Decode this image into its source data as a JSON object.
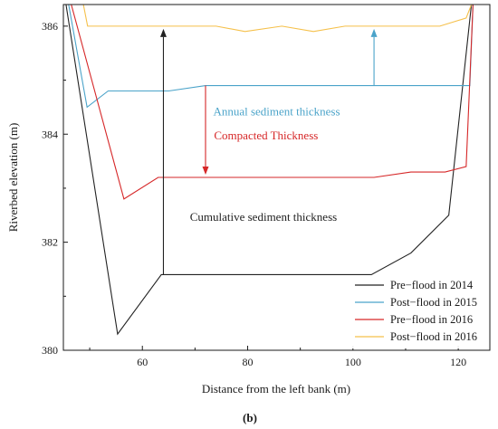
{
  "chart_data": {
    "type": "line",
    "panel_label": "(b)",
    "xlabel": "Distance from the left bank (m)",
    "ylabel": "Riverbed elevation (m)",
    "xlim": [
      45,
      126
    ],
    "ylim": [
      380,
      386.4
    ],
    "xticks": [
      60,
      80,
      100,
      120
    ],
    "yticks": [
      380,
      382,
      384,
      386
    ],
    "grid": false,
    "legend_position": "bottom-right",
    "series": [
      {
        "name": "Pre−flood in 2014",
        "color": "#222222",
        "x": [
          45.5,
          55.3,
          63.6,
          103.5,
          111,
          118.2,
          122.5
        ],
        "y": [
          386.4,
          380.3,
          381.4,
          381.4,
          381.8,
          382.5,
          386.4
        ]
      },
      {
        "name": "Post−flood in 2015",
        "color": "#4aa3c9",
        "x": [
          46,
          49.5,
          53.5,
          65,
          72,
          122.2,
          122.8
        ],
        "y": [
          386.4,
          384.5,
          384.8,
          384.8,
          384.9,
          384.9,
          386.4
        ]
      },
      {
        "name": "Pre−flood in 2016",
        "color": "#d62728",
        "x": [
          46.5,
          56.5,
          63,
          104,
          111,
          117.5,
          121.5,
          122.8
        ],
        "y": [
          386.4,
          382.8,
          383.2,
          383.2,
          383.3,
          383.3,
          383.4,
          386.4
        ]
      },
      {
        "name": "Post−flood in 2016",
        "color": "#f5c04a",
        "x": [
          48.8,
          49.6,
          62,
          74,
          79.5,
          86.5,
          92.5,
          98.5,
          116.5,
          121.5,
          122.5
        ],
        "y": [
          386.4,
          386.0,
          386.0,
          386.0,
          385.9,
          386.0,
          385.9,
          386.0,
          386.0,
          386.15,
          386.4
        ]
      }
    ],
    "annotations": [
      {
        "text": "Annual sediment thickness",
        "color": "#4aa3c9",
        "x": 85.5,
        "y": 384.35
      },
      {
        "text": "Compacted Thickness",
        "color": "#d62728",
        "x": 83.5,
        "y": 383.9
      },
      {
        "text": "Cumulative sediment thickness",
        "color": "#222222",
        "x": 83,
        "y": 382.4
      }
    ],
    "arrows": [
      {
        "color": "#222222",
        "x": 64,
        "y_from": 381.4,
        "y_to": 385.95
      },
      {
        "color": "#4aa3c9",
        "x": 104,
        "y_from": 384.9,
        "y_to": 385.95
      },
      {
        "color": "#d62728",
        "x": 72,
        "y_from": 384.9,
        "y_to": 383.25
      }
    ]
  }
}
